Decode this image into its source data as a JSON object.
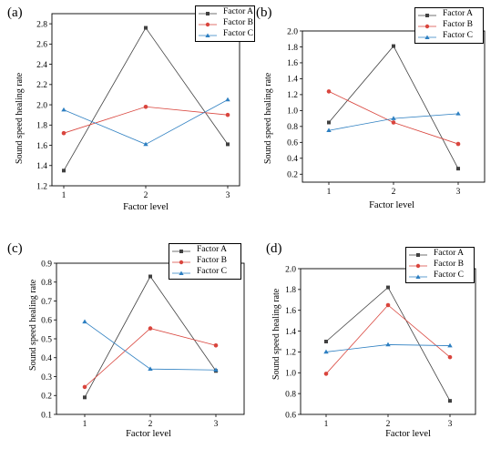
{
  "chart_data": [
    {
      "type": "line",
      "panel_label": "(a)",
      "xlabel": "Factor level",
      "ylabel": "Sound speed healing rate",
      "x": [
        1,
        2,
        3
      ],
      "x_ticks": [
        "1",
        "2",
        "3"
      ],
      "ylim": [
        1.2,
        2.9
      ],
      "y_ticks": [
        "1.2",
        "1.4",
        "1.6",
        "1.8",
        "2.0",
        "2.2",
        "2.4",
        "2.6",
        "2.8"
      ],
      "legend_position": "top-right",
      "series": [
        {
          "name": "Factor A",
          "color": "#404040",
          "marker": "square",
          "values": [
            1.35,
            2.76,
            1.61
          ]
        },
        {
          "name": "Factor B",
          "color": "#d9453d",
          "marker": "circle",
          "values": [
            1.72,
            1.98,
            1.9
          ]
        },
        {
          "name": "Factor C",
          "color": "#2d7fc1",
          "marker": "triangle",
          "values": [
            1.95,
            1.61,
            2.05
          ]
        }
      ]
    },
    {
      "type": "line",
      "panel_label": "(b)",
      "xlabel": "Factor level",
      "ylabel": "Sound speed healing rate",
      "x": [
        1,
        2,
        3
      ],
      "x_ticks": [
        "1",
        "2",
        "3"
      ],
      "ylim": [
        0.1,
        2.0
      ],
      "y_ticks": [
        "0.2",
        "0.4",
        "0.6",
        "0.8",
        "1.0",
        "1.2",
        "1.4",
        "1.6",
        "1.8",
        "2.0"
      ],
      "legend_position": "top-right",
      "series": [
        {
          "name": "Factor A",
          "color": "#404040",
          "marker": "square",
          "values": [
            0.85,
            1.81,
            0.27
          ]
        },
        {
          "name": "Factor B",
          "color": "#d9453d",
          "marker": "circle",
          "values": [
            1.24,
            0.85,
            0.58
          ]
        },
        {
          "name": "Factor C",
          "color": "#2d7fc1",
          "marker": "triangle",
          "values": [
            0.75,
            0.9,
            0.96
          ]
        }
      ]
    },
    {
      "type": "line",
      "panel_label": "(c)",
      "xlabel": "Factor level",
      "ylabel": "Sound speed healing rate",
      "x": [
        1,
        2,
        3
      ],
      "x_ticks": [
        "1",
        "2",
        "3"
      ],
      "ylim": [
        0.1,
        0.9
      ],
      "y_ticks": [
        "0.1",
        "0.2",
        "0.3",
        "0.4",
        "0.5",
        "0.6",
        "0.7",
        "0.8",
        "0.9"
      ],
      "legend_position": "top-right",
      "series": [
        {
          "name": "Factor A",
          "color": "#404040",
          "marker": "square",
          "values": [
            0.19,
            0.83,
            0.33
          ]
        },
        {
          "name": "Factor B",
          "color": "#d9453d",
          "marker": "circle",
          "values": [
            0.245,
            0.555,
            0.465
          ]
        },
        {
          "name": "Factor C",
          "color": "#2d7fc1",
          "marker": "triangle",
          "values": [
            0.59,
            0.34,
            0.335
          ]
        }
      ]
    },
    {
      "type": "line",
      "panel_label": "(d)",
      "xlabel": "Factor level",
      "ylabel": "Sound speed healing rate",
      "x": [
        1,
        2,
        3
      ],
      "x_ticks": [
        "1",
        "2",
        "3"
      ],
      "ylim": [
        0.6,
        2.0
      ],
      "y_ticks": [
        "0.6",
        "0.8",
        "1.0",
        "1.2",
        "1.4",
        "1.6",
        "1.8",
        "2.0"
      ],
      "legend_position": "top-right",
      "series": [
        {
          "name": "Factor A",
          "color": "#404040",
          "marker": "square",
          "values": [
            1.3,
            1.82,
            0.73
          ]
        },
        {
          "name": "Factor B",
          "color": "#d9453d",
          "marker": "circle",
          "values": [
            0.99,
            1.65,
            1.15
          ]
        },
        {
          "name": "Factor C",
          "color": "#2d7fc1",
          "marker": "triangle",
          "values": [
            1.2,
            1.27,
            1.26
          ]
        }
      ]
    }
  ]
}
